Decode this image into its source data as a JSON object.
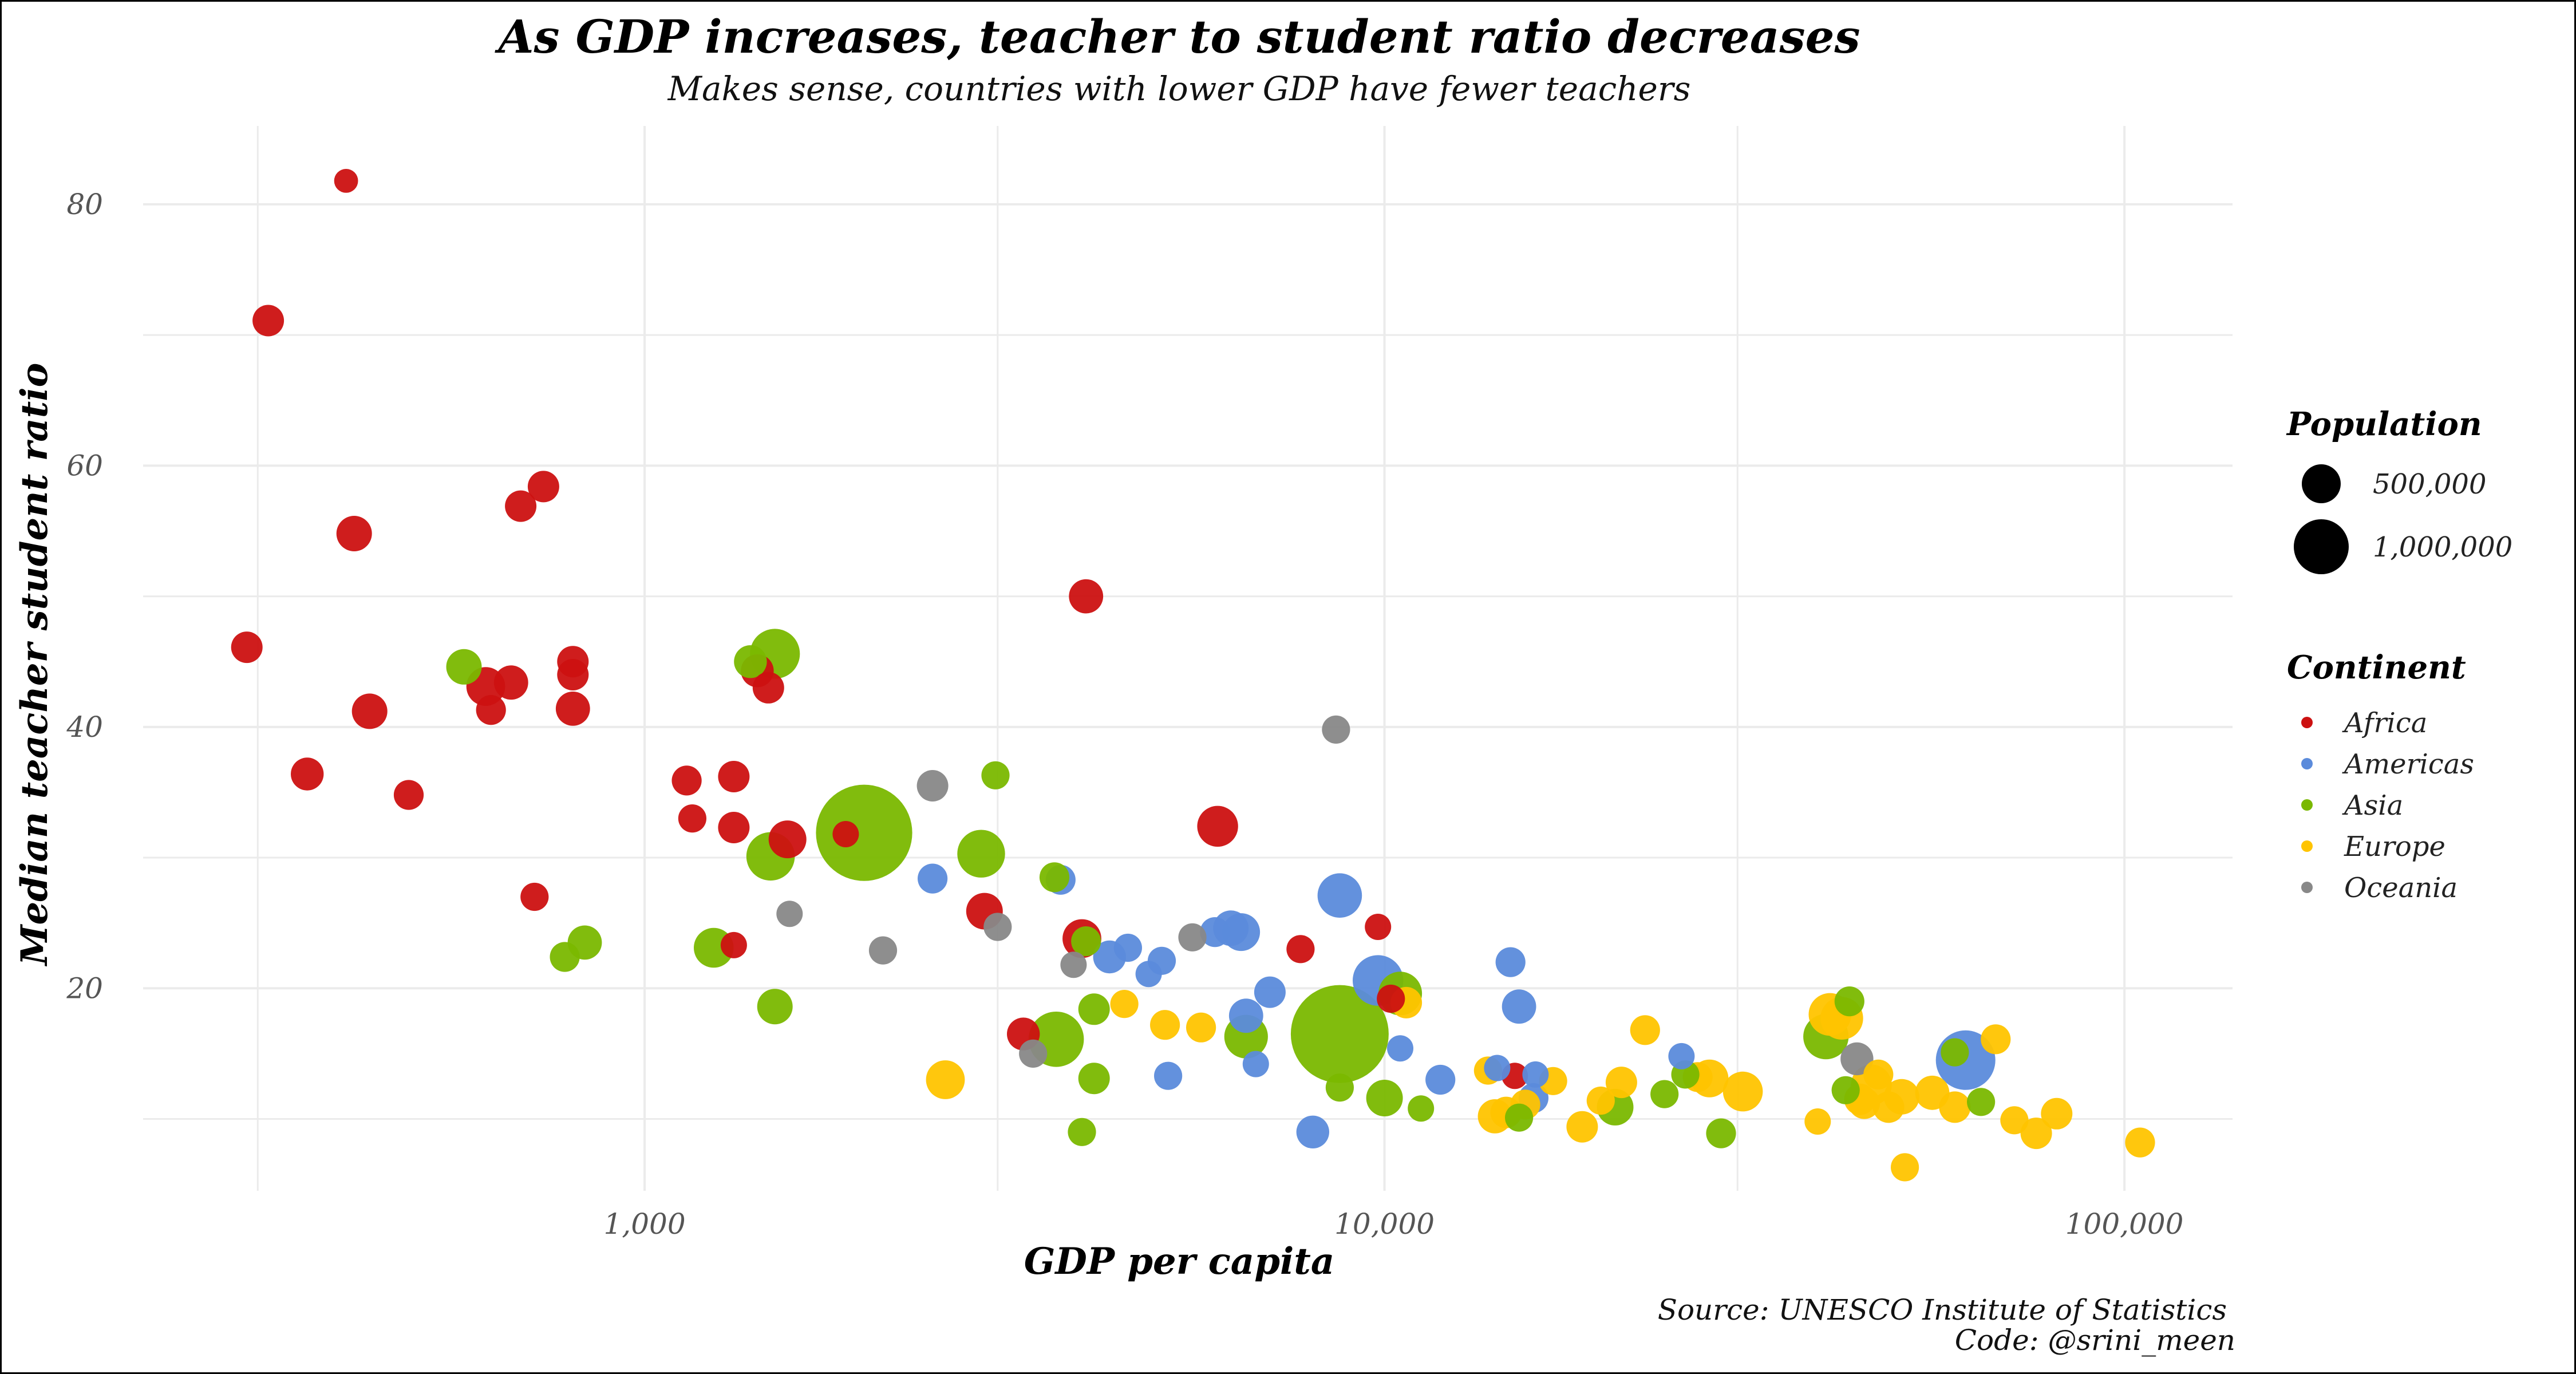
{
  "chart_data": {
    "type": "scatter",
    "title": "As GDP increases, teacher to student ratio decreases",
    "subtitle": "Makes sense, countries with lower GDP have fewer teachers",
    "xlabel": "GDP per capita",
    "ylabel": "Median teacher student ratio",
    "x_scale": "log10",
    "xlim": [
      210,
      140000
    ],
    "ylim": [
      4.5,
      86
    ],
    "x_ticks": [
      1000,
      10000,
      100000
    ],
    "x_tick_labels": [
      "1,000",
      "10,000",
      "100,000"
    ],
    "y_ticks": [
      20,
      40,
      60,
      80
    ],
    "y_tick_labels": [
      "20",
      "40",
      "60",
      "80"
    ],
    "grid": true,
    "caption": [
      "Source: UNESCO Institute of Statistics",
      "Code: @srini_meen"
    ],
    "legend_placement": "right",
    "size_legend": {
      "title": "Population",
      "entries": [
        {
          "label": "500,000",
          "value": 500000
        },
        {
          "label": "1,000,000",
          "value": 1000000
        }
      ]
    },
    "color_legend": {
      "title": "Continent",
      "entries": [
        {
          "label": "Africa",
          "color": "#cc1111"
        },
        {
          "label": "Americas",
          "color": "#5b8bdb"
        },
        {
          "label": "Asia",
          "color": "#7ab800"
        },
        {
          "label": "Europe",
          "color": "#ffc400"
        },
        {
          "label": "Oceania",
          "color": "#888888"
        }
      ]
    },
    "series": [
      {
        "name": "Africa",
        "color": "#cc1111",
        "points": [
          {
            "x": 395,
            "y": 81.8,
            "pop": 20000
          },
          {
            "x": 310,
            "y": 71.1,
            "pop": 60000
          },
          {
            "x": 290,
            "y": 46.1,
            "pop": 60000
          },
          {
            "x": 405,
            "y": 54.8,
            "pop": 90000
          },
          {
            "x": 730,
            "y": 58.4,
            "pop": 60000
          },
          {
            "x": 680,
            "y": 56.9,
            "pop": 60000
          },
          {
            "x": 425,
            "y": 41.2,
            "pop": 90000
          },
          {
            "x": 610,
            "y": 43.1,
            "pop": 120000
          },
          {
            "x": 660,
            "y": 43.4,
            "pop": 80000
          },
          {
            "x": 620,
            "y": 41.3,
            "pop": 50000
          },
          {
            "x": 800,
            "y": 45.0,
            "pop": 60000
          },
          {
            "x": 800,
            "y": 44.0,
            "pop": 60000
          },
          {
            "x": 800,
            "y": 41.4,
            "pop": 80000
          },
          {
            "x": 350,
            "y": 36.4,
            "pop": 70000
          },
          {
            "x": 480,
            "y": 34.8,
            "pop": 50000
          },
          {
            "x": 710,
            "y": 27.0,
            "pop": 40000
          },
          {
            "x": 1140,
            "y": 35.9,
            "pop": 50000
          },
          {
            "x": 1160,
            "y": 33.0,
            "pop": 40000
          },
          {
            "x": 1320,
            "y": 36.2,
            "pop": 60000
          },
          {
            "x": 1320,
            "y": 32.3,
            "pop": 60000
          },
          {
            "x": 1420,
            "y": 44.3,
            "pop": 70000
          },
          {
            "x": 1470,
            "y": 43.0,
            "pop": 60000
          },
          {
            "x": 1560,
            "y": 31.4,
            "pop": 110000
          },
          {
            "x": 1320,
            "y": 23.3,
            "pop": 30000
          },
          {
            "x": 1870,
            "y": 31.8,
            "pop": 30000
          },
          {
            "x": 2880,
            "y": 25.9,
            "pop": 100000
          },
          {
            "x": 3250,
            "y": 16.5,
            "pop": 70000
          },
          {
            "x": 3950,
            "y": 50.0,
            "pop": 80000
          },
          {
            "x": 3900,
            "y": 23.8,
            "pop": 120000
          },
          {
            "x": 5950,
            "y": 32.4,
            "pop": 140000
          },
          {
            "x": 7700,
            "y": 23.0,
            "pop": 40000
          },
          {
            "x": 9800,
            "y": 24.7,
            "pop": 30000
          },
          {
            "x": 10200,
            "y": 19.2,
            "pop": 40000
          },
          {
            "x": 15000,
            "y": 13.3,
            "pop": 30000
          }
        ]
      },
      {
        "name": "Americas",
        "color": "#5b8bdb",
        "points": [
          {
            "x": 2450,
            "y": 28.4,
            "pop": 50000
          },
          {
            "x": 3650,
            "y": 28.3,
            "pop": 50000
          },
          {
            "x": 4250,
            "y": 22.4,
            "pop": 70000
          },
          {
            "x": 4500,
            "y": 23.1,
            "pop": 40000
          },
          {
            "x": 4800,
            "y": 21.1,
            "pop": 30000
          },
          {
            "x": 5000,
            "y": 22.1,
            "pop": 40000
          },
          {
            "x": 5100,
            "y": 13.3,
            "pop": 40000
          },
          {
            "x": 5900,
            "y": 24.3,
            "pop": 50000
          },
          {
            "x": 6200,
            "y": 24.6,
            "pop": 90000
          },
          {
            "x": 6400,
            "y": 24.3,
            "pop": 110000
          },
          {
            "x": 6500,
            "y": 17.9,
            "pop": 80000
          },
          {
            "x": 6700,
            "y": 14.2,
            "pop": 30000
          },
          {
            "x": 7000,
            "y": 19.7,
            "pop": 60000
          },
          {
            "x": 8000,
            "y": 9.0,
            "pop": 70000
          },
          {
            "x": 8700,
            "y": 27.1,
            "pop": 180000
          },
          {
            "x": 9800,
            "y": 20.6,
            "pop": 260000
          },
          {
            "x": 10500,
            "y": 15.4,
            "pop": 30000
          },
          {
            "x": 11900,
            "y": 13.0,
            "pop": 50000
          },
          {
            "x": 14800,
            "y": 22.0,
            "pop": 50000
          },
          {
            "x": 15200,
            "y": 18.6,
            "pop": 80000
          },
          {
            "x": 14200,
            "y": 13.9,
            "pop": 30000
          },
          {
            "x": 16000,
            "y": 13.4,
            "pop": 30000
          },
          {
            "x": 15900,
            "y": 11.6,
            "pop": 50000
          },
          {
            "x": 25200,
            "y": 14.8,
            "pop": 30000
          },
          {
            "x": 61000,
            "y": 14.5,
            "pop": 400000
          }
        ]
      },
      {
        "name": "Asia",
        "color": "#7ab800",
        "points": [
          {
            "x": 570,
            "y": 44.6,
            "pop": 90000
          },
          {
            "x": 780,
            "y": 22.4,
            "pop": 50000
          },
          {
            "x": 830,
            "y": 23.5,
            "pop": 80000
          },
          {
            "x": 1240,
            "y": 23.1,
            "pop": 130000
          },
          {
            "x": 1390,
            "y": 45.0,
            "pop": 70000
          },
          {
            "x": 1500,
            "y": 45.6,
            "pop": 250000
          },
          {
            "x": 1480,
            "y": 30.1,
            "pop": 230000
          },
          {
            "x": 1500,
            "y": 18.6,
            "pop": 90000
          },
          {
            "x": 1980,
            "y": 31.9,
            "pop": 1300000
          },
          {
            "x": 2850,
            "y": 30.3,
            "pop": 220000
          },
          {
            "x": 2980,
            "y": 36.3,
            "pop": 40000
          },
          {
            "x": 3580,
            "y": 28.5,
            "pop": 50000
          },
          {
            "x": 3600,
            "y": 16.1,
            "pop": 330000
          },
          {
            "x": 3950,
            "y": 23.6,
            "pop": 50000
          },
          {
            "x": 4050,
            "y": 18.4,
            "pop": 60000
          },
          {
            "x": 4050,
            "y": 13.1,
            "pop": 60000
          },
          {
            "x": 3900,
            "y": 9.0,
            "pop": 40000
          },
          {
            "x": 6500,
            "y": 16.3,
            "pop": 170000
          },
          {
            "x": 8700,
            "y": 16.5,
            "pop": 1350000
          },
          {
            "x": 8700,
            "y": 12.4,
            "pop": 40000
          },
          {
            "x": 10000,
            "y": 11.6,
            "pop": 100000
          },
          {
            "x": 10500,
            "y": 19.6,
            "pop": 170000
          },
          {
            "x": 11200,
            "y": 10.8,
            "pop": 30000
          },
          {
            "x": 15200,
            "y": 10.1,
            "pop": 40000
          },
          {
            "x": 20500,
            "y": 10.9,
            "pop": 100000
          },
          {
            "x": 23900,
            "y": 11.9,
            "pop": 40000
          },
          {
            "x": 25500,
            "y": 13.4,
            "pop": 40000
          },
          {
            "x": 28500,
            "y": 8.9,
            "pop": 50000
          },
          {
            "x": 39500,
            "y": 16.3,
            "pop": 190000
          },
          {
            "x": 42500,
            "y": 19.0,
            "pop": 50000
          },
          {
            "x": 42000,
            "y": 12.2,
            "pop": 40000
          },
          {
            "x": 59000,
            "y": 15.1,
            "pop": 40000
          },
          {
            "x": 64000,
            "y": 11.3,
            "pop": 40000
          }
        ]
      },
      {
        "name": "Europe",
        "color": "#ffc400",
        "points": [
          {
            "x": 2550,
            "y": 13.0,
            "pop": 120000
          },
          {
            "x": 4450,
            "y": 18.8,
            "pop": 40000
          },
          {
            "x": 5050,
            "y": 17.2,
            "pop": 50000
          },
          {
            "x": 5650,
            "y": 17.0,
            "pop": 50000
          },
          {
            "x": 10700,
            "y": 18.9,
            "pop": 60000
          },
          {
            "x": 13800,
            "y": 13.7,
            "pop": 40000
          },
          {
            "x": 14600,
            "y": 10.5,
            "pop": 60000
          },
          {
            "x": 14100,
            "y": 10.2,
            "pop": 80000
          },
          {
            "x": 15500,
            "y": 11.1,
            "pop": 50000
          },
          {
            "x": 16900,
            "y": 12.9,
            "pop": 40000
          },
          {
            "x": 18500,
            "y": 9.4,
            "pop": 60000
          },
          {
            "x": 19600,
            "y": 11.4,
            "pop": 40000
          },
          {
            "x": 20900,
            "y": 12.8,
            "pop": 60000
          },
          {
            "x": 22500,
            "y": 16.8,
            "pop": 50000
          },
          {
            "x": 26500,
            "y": 13.2,
            "pop": 50000
          },
          {
            "x": 27500,
            "y": 13.1,
            "pop": 110000
          },
          {
            "x": 30500,
            "y": 12.1,
            "pop": 130000
          },
          {
            "x": 38500,
            "y": 9.8,
            "pop": 30000
          },
          {
            "x": 40000,
            "y": 18.0,
            "pop": 160000
          },
          {
            "x": 41500,
            "y": 17.7,
            "pop": 160000
          },
          {
            "x": 43900,
            "y": 11.5,
            "pop": 60000
          },
          {
            "x": 44500,
            "y": 11.2,
            "pop": 60000
          },
          {
            "x": 45500,
            "y": 12.6,
            "pop": 140000
          },
          {
            "x": 46500,
            "y": 13.4,
            "pop": 50000
          },
          {
            "x": 48000,
            "y": 10.9,
            "pop": 60000
          },
          {
            "x": 50000,
            "y": 11.7,
            "pop": 90000
          },
          {
            "x": 50500,
            "y": 6.3,
            "pop": 40000
          },
          {
            "x": 55000,
            "y": 12.0,
            "pop": 80000
          },
          {
            "x": 59000,
            "y": 10.9,
            "pop": 60000
          },
          {
            "x": 67000,
            "y": 16.1,
            "pop": 50000
          },
          {
            "x": 71000,
            "y": 9.9,
            "pop": 40000
          },
          {
            "x": 76000,
            "y": 8.9,
            "pop": 60000
          },
          {
            "x": 81000,
            "y": 10.4,
            "pop": 60000
          },
          {
            "x": 105000,
            "y": 8.2,
            "pop": 50000
          }
        ]
      },
      {
        "name": "Oceania",
        "color": "#888888",
        "points": [
          {
            "x": 1570,
            "y": 25.7,
            "pop": 30000
          },
          {
            "x": 2100,
            "y": 22.9,
            "pop": 40000
          },
          {
            "x": 2450,
            "y": 35.5,
            "pop": 60000
          },
          {
            "x": 3000,
            "y": 24.7,
            "pop": 40000
          },
          {
            "x": 3350,
            "y": 15.0,
            "pop": 40000
          },
          {
            "x": 3800,
            "y": 21.8,
            "pop": 30000
          },
          {
            "x": 5500,
            "y": 23.9,
            "pop": 40000
          },
          {
            "x": 8600,
            "y": 39.8,
            "pop": 40000
          },
          {
            "x": 43500,
            "y": 14.6,
            "pop": 70000
          }
        ]
      }
    ]
  }
}
